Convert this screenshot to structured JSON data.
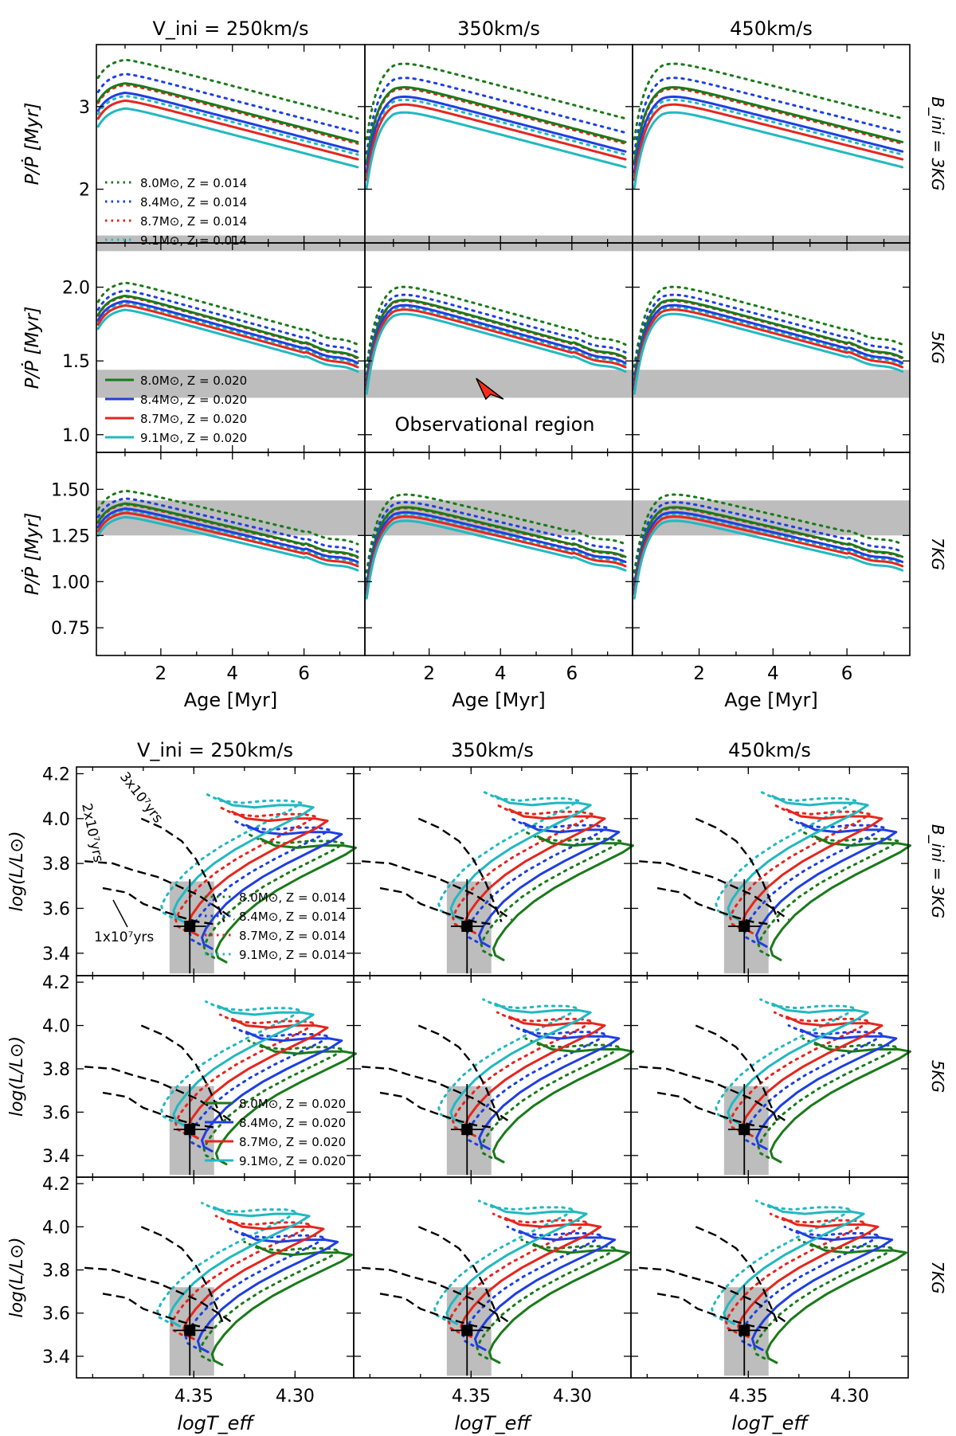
{
  "chart_data": [
    {
      "type": "line",
      "id": "period-ratio-grid",
      "xlabel": "Age [Myr]",
      "ylabel": "P/Ṗ  [Myr]",
      "column_titles": [
        "V_ini = 250km/s",
        "350km/s",
        "450km/s"
      ],
      "row_labels": [
        "B_ini = 3KG",
        "5KG",
        "7KG"
      ],
      "xlim": [
        0.2,
        7.7
      ],
      "xticks": [
        2,
        4,
        6
      ],
      "rows": [
        {
          "ylim": [
            1.35,
            3.75
          ],
          "yticks": [
            2,
            3
          ],
          "yticklabels": [
            "2",
            "3"
          ],
          "obs_band": [
            1.25,
            1.44
          ],
          "legend": "dotted",
          "lowest_peak": 3.0
        },
        {
          "ylim": [
            0.88,
            2.3
          ],
          "yticks": [
            1.0,
            1.5,
            2.0
          ],
          "yticklabels": [
            "1.0",
            "1.5",
            "2.0"
          ],
          "obs_band": [
            1.25,
            1.44
          ],
          "legend": "solid",
          "lowest_peak": 1.86
        },
        {
          "ylim": [
            0.6,
            1.7
          ],
          "yticks": [
            0.75,
            1.0,
            1.25,
            1.5
          ],
          "yticklabels": [
            "0.75",
            "1.00",
            "1.25",
            "1.50"
          ],
          "obs_band": [
            1.25,
            1.44
          ],
          "legend": null,
          "lowest_peak": 1.36
        }
      ],
      "series": [
        {
          "name": "8.0M⊙, Z = 0.014",
          "color": "#1a7a1a",
          "style": "dotted",
          "offset": 0.31
        },
        {
          "name": "8.4M⊙, Z = 0.014",
          "color": "#1f3fe0",
          "style": "dotted",
          "offset": 0.22
        },
        {
          "name": "8.7M⊙, Z = 0.014",
          "color": "#e5261f",
          "style": "dotted",
          "offset": 0.15
        },
        {
          "name": "9.1M⊙, Z = 0.014",
          "color": "#22b8c0",
          "style": "dotted",
          "offset": 0.08
        },
        {
          "name": "8.0M⊙, Z = 0.020",
          "color": "#1a7a1a",
          "style": "solid",
          "offset": 0.16
        },
        {
          "name": "8.4M⊙, Z = 0.020",
          "color": "#1f3fe0",
          "style": "solid",
          "offset": 0.1
        },
        {
          "name": "8.7M⊙, Z = 0.020",
          "color": "#e5261f",
          "style": "solid",
          "offset": 0.05
        },
        {
          "name": "9.1M⊙, Z = 0.020",
          "color": "#22b8c0",
          "style": "solid",
          "offset": 0.0
        }
      ],
      "annotation": {
        "text": "Observational region",
        "arrow_target": [
          3.5,
          1.36
        ]
      }
    },
    {
      "type": "line",
      "id": "hr-diagram-grid",
      "xlabel": "logT_eff",
      "ylabel": "log(L/L⊙)",
      "column_titles": [
        "V_ini = 250km/s",
        "350km/s",
        "450km/s"
      ],
      "row_labels": [
        "B_ini = 3KG",
        "5KG",
        "7KG"
      ],
      "xlim": [
        4.408,
        4.271
      ],
      "xticks": [
        4.35,
        4.3
      ],
      "xticklabels": [
        "4.35",
        "4.30"
      ],
      "ylim": [
        3.3,
        4.23
      ],
      "yticks": [
        3.4,
        3.6,
        3.8,
        4.0,
        4.2
      ],
      "yticklabels": [
        "3.4",
        "3.6",
        "3.8",
        "4.0",
        "4.2"
      ],
      "observation": {
        "logTeff": 4.352,
        "logL": 3.52,
        "logTeff_err": 0.004,
        "logL_err": 0.21,
        "box_logTeff": [
          4.362,
          4.34
        ],
        "box_logL": [
          3.31,
          3.72
        ]
      },
      "tracks": [
        {
          "name": "8.0M⊙, Z = 0.014",
          "color": "#1a7a1a",
          "style": "dotted",
          "x_shift": 0.0,
          "y_shift": 0.0
        },
        {
          "name": "8.4M⊙, Z = 0.014",
          "color": "#1f3fe0",
          "style": "dotted",
          "x_shift": 0.007,
          "y_shift": 0.06
        },
        {
          "name": "8.7M⊙, Z = 0.014",
          "color": "#e5261f",
          "style": "dotted",
          "x_shift": 0.014,
          "y_shift": 0.12
        },
        {
          "name": "9.1M⊙, Z = 0.014",
          "color": "#22b8c0",
          "style": "dotted",
          "x_shift": 0.021,
          "y_shift": 0.18
        },
        {
          "name": "8.0M⊙, Z = 0.020",
          "color": "#1a7a1a",
          "style": "solid",
          "x_shift": -0.006,
          "y_shift": -0.02
        },
        {
          "name": "8.4M⊙, Z = 0.020",
          "color": "#1f3fe0",
          "style": "solid",
          "x_shift": 0.001,
          "y_shift": 0.04
        },
        {
          "name": "8.7M⊙, Z = 0.020",
          "color": "#e5261f",
          "style": "solid",
          "x_shift": 0.008,
          "y_shift": 0.1
        },
        {
          "name": "9.1M⊙, Z = 0.020",
          "color": "#22b8c0",
          "style": "solid",
          "x_shift": 0.015,
          "y_shift": 0.16
        }
      ],
      "isochrones": [
        {
          "label": "1x10⁷yrs",
          "points": [
            [
              4.395,
              3.69
            ],
            [
              4.383,
              3.67
            ],
            [
              4.375,
              3.62
            ],
            [
              4.366,
              3.59
            ],
            [
              4.356,
              3.56
            ],
            [
              4.348,
              3.54
            ],
            [
              4.34,
              3.53
            ]
          ]
        },
        {
          "label": "2x10⁷yrs",
          "points": [
            [
              4.404,
              3.81
            ],
            [
              4.39,
              3.8
            ],
            [
              4.38,
              3.77
            ],
            [
              4.368,
              3.74
            ],
            [
              4.358,
              3.7
            ],
            [
              4.348,
              3.66
            ],
            [
              4.338,
              3.6
            ],
            [
              4.33,
              3.55
            ]
          ]
        },
        {
          "label": "3x10⁷yrs",
          "points": [
            [
              4.376,
              4.0
            ],
            [
              4.366,
              3.96
            ],
            [
              4.356,
              3.9
            ],
            [
              4.349,
              3.82
            ],
            [
              4.343,
              3.72
            ],
            [
              4.338,
              3.61
            ],
            [
              4.335,
              3.54
            ]
          ]
        }
      ],
      "annotations": [
        "3x10⁷yrs",
        "2x10⁷yrs",
        "1x10⁷yrs"
      ]
    }
  ],
  "colors": {
    "green": "#1a7a1a",
    "blue": "#1f3fe0",
    "red": "#e5261f",
    "cyan": "#22b8c0",
    "band": "#bdbdbd"
  }
}
